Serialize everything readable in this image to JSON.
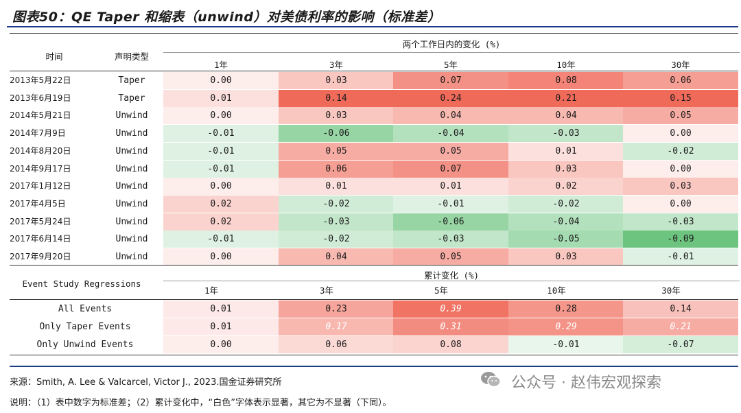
{
  "title": "图表50：QE Taper 和缩表（unwind）对美债利率的影响（标准差）",
  "headers": {
    "time": "时间",
    "type": "声明类型",
    "group_daily": "两个工作日内的变化 (%)",
    "group_cum": "累计变化 (%)",
    "regression": "Event Study Regressions",
    "tenors": [
      "1年",
      "3年",
      "5年",
      "10年",
      "30年"
    ]
  },
  "events": [
    {
      "date": "2013年5月22日",
      "type": "Taper",
      "values": [
        "0.00",
        "0.03",
        "0.07",
        "0.08",
        "0.06"
      ]
    },
    {
      "date": "2013年6月19日",
      "type": "Taper",
      "values": [
        "0.01",
        "0.14",
        "0.24",
        "0.21",
        "0.15"
      ]
    },
    {
      "date": "2014年5月21日",
      "type": "Unwind",
      "values": [
        "0.00",
        "0.03",
        "0.04",
        "0.04",
        "0.05"
      ]
    },
    {
      "date": "2014年7月9日",
      "type": "Unwind",
      "values": [
        "-0.01",
        "-0.06",
        "-0.04",
        "-0.03",
        "0.00"
      ]
    },
    {
      "date": "2014年8月20日",
      "type": "Unwind",
      "values": [
        "-0.01",
        "0.05",
        "0.05",
        "0.01",
        "-0.02"
      ]
    },
    {
      "date": "2014年9月17日",
      "type": "Unwind",
      "values": [
        "-0.01",
        "0.06",
        "0.07",
        "0.03",
        "0.00"
      ]
    },
    {
      "date": "2017年1月12日",
      "type": "Unwind",
      "values": [
        "0.00",
        "0.01",
        "0.01",
        "0.02",
        "0.03"
      ]
    },
    {
      "date": "2017年4月5日",
      "type": "Unwind",
      "values": [
        "0.02",
        "-0.02",
        "-0.01",
        "-0.02",
        "0.00"
      ]
    },
    {
      "date": "2017年5月24日",
      "type": "Unwind",
      "values": [
        "0.02",
        "-0.03",
        "-0.06",
        "-0.04",
        "-0.03"
      ]
    },
    {
      "date": "2017年6月14日",
      "type": "Unwind",
      "values": [
        "-0.01",
        "-0.02",
        "-0.03",
        "-0.05",
        "-0.09"
      ]
    },
    {
      "date": "2017年9月20日",
      "type": "Unwind",
      "values": [
        "0.00",
        "0.04",
        "0.05",
        "0.03",
        "-0.01"
      ]
    }
  ],
  "regressions": [
    {
      "label": "All Events",
      "values": [
        "0.01",
        "0.23",
        "0.39",
        "0.28",
        "0.14"
      ],
      "significant": [
        false,
        false,
        true,
        false,
        false
      ]
    },
    {
      "label": "Only Taper Events",
      "values": [
        "0.01",
        "0.17",
        "0.31",
        "0.29",
        "0.21"
      ],
      "significant": [
        false,
        true,
        true,
        true,
        true
      ]
    },
    {
      "label": "Only Unwind Events",
      "values": [
        "0.00",
        "0.06",
        "0.08",
        "-0.01",
        "-0.07"
      ],
      "significant": [
        false,
        false,
        false,
        false,
        false
      ]
    }
  ],
  "colors": {
    "positive": "#f0606a",
    "negative": "#5fbf73",
    "accent_rule": "#1f3c88"
  },
  "footer": {
    "source": "来源：Smith, A. Lee & Valcarcel, Victor J., 2023.国金证券研究所",
    "note": "说明：（1）表中数字为标准差；（2）累计变化中，“白色”字体表示显著，其它为不显著（下同）。"
  },
  "watermark": {
    "text": "公众号 · 赵伟宏观探索",
    "icon": "wechat-icon"
  }
}
